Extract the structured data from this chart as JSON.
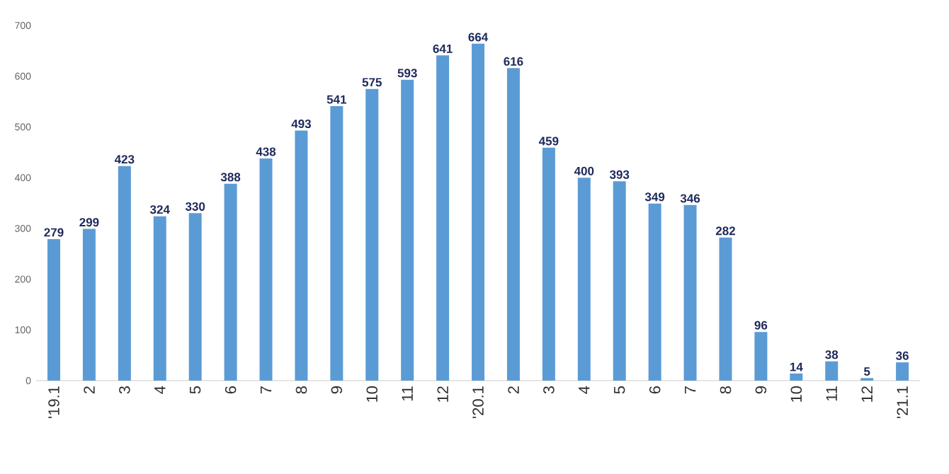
{
  "chart_data": {
    "type": "bar",
    "categories": [
      "'19.1",
      "2",
      "3",
      "4",
      "5",
      "6",
      "7",
      "8",
      "9",
      "10",
      "11",
      "12",
      "'20.1",
      "2",
      "3",
      "4",
      "5",
      "6",
      "7",
      "8",
      "9",
      "10",
      "11",
      "12",
      "'21.1"
    ],
    "values": [
      279,
      299,
      423,
      324,
      330,
      388,
      438,
      493,
      541,
      575,
      593,
      641,
      664,
      616,
      459,
      400,
      393,
      349,
      346,
      282,
      96,
      14,
      38,
      5,
      36
    ],
    "color": "#5b9bd5",
    "ylim": [
      0,
      700
    ],
    "yticks": [
      0,
      100,
      200,
      300,
      400,
      500,
      600,
      700
    ],
    "data_labels": true
  }
}
